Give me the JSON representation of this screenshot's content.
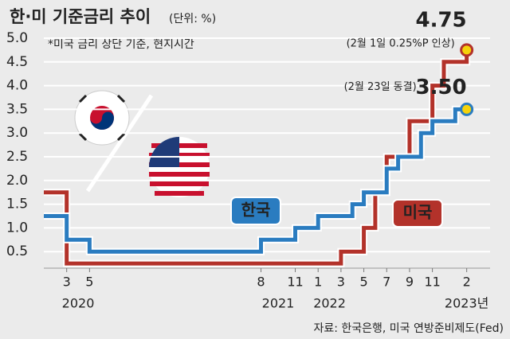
{
  "chart_data": {
    "type": "step",
    "title": "한·미 기준금리 추이",
    "unit": "(단위: %)",
    "note": "*미국 금리 상단 기준, 현지시간",
    "source": "자료: 한국은행, 미국 연방준비제도(Fed)",
    "xlim": [
      "2020-01",
      "2023-03"
    ],
    "ylim": [
      0,
      5
    ],
    "yticks": [
      0.5,
      {
        "value": 1,
        "label": "1.0"
      },
      1.5,
      {
        "value": 2,
        "label": "2.0"
      },
      2.5,
      {
        "value": 3,
        "label": "3.0"
      },
      3.5,
      {
        "value": 4,
        "label": "4.0"
      },
      4.5,
      {
        "value": 5,
        "label": "5.0"
      }
    ],
    "xticks": [
      {
        "value": "2020-03",
        "label": "3"
      },
      {
        "value": "2020-05",
        "label": "5"
      },
      {
        "value": "2021-08",
        "label": "8"
      },
      {
        "value": "2021-11",
        "label": "11"
      },
      {
        "value": "2022-01",
        "label": "1"
      },
      {
        "value": "2022-03",
        "label": "3"
      },
      {
        "value": "2022-05",
        "label": "5"
      },
      {
        "value": "2022-07",
        "label": "7"
      },
      {
        "value": "2022-09",
        "label": "9"
      },
      {
        "value": "2022-11",
        "label": "11"
      },
      {
        "value": "2023-02",
        "label": "2"
      }
    ],
    "year_labels": [
      "2020",
      "2021",
      "2022",
      "2023년"
    ],
    "grid": true,
    "series": [
      {
        "name": "미국",
        "color": "#b3322a",
        "x": [
          "2020-01",
          "2020-03",
          "2020-03",
          "2022-03",
          "2022-05",
          "2022-06",
          "2022-07",
          "2022-09",
          "2022-11",
          "2022-12",
          "2023-02"
        ],
        "values": [
          1.75,
          1.25,
          0.25,
          0.5,
          1.0,
          1.75,
          2.5,
          3.25,
          4.0,
          4.5,
          4.75
        ],
        "last_label": "4.75",
        "annotation": "(2월 1일 0.25%P 인상)"
      },
      {
        "name": "한국",
        "color": "#2a7cc0",
        "x": [
          "2020-01",
          "2020-03",
          "2020-05",
          "2021-08",
          "2021-11",
          "2022-01",
          "2022-04",
          "2022-05",
          "2022-07",
          "2022-08",
          "2022-10",
          "2022-11",
          "2023-01",
          "2023-02"
        ],
        "values": [
          1.25,
          0.75,
          0.5,
          0.75,
          1.0,
          1.25,
          1.5,
          1.75,
          2.25,
          2.5,
          3.0,
          3.25,
          3.5,
          3.5
        ],
        "last_label": "3.50",
        "annotation": "(2월 23일 동결)"
      }
    ]
  }
}
